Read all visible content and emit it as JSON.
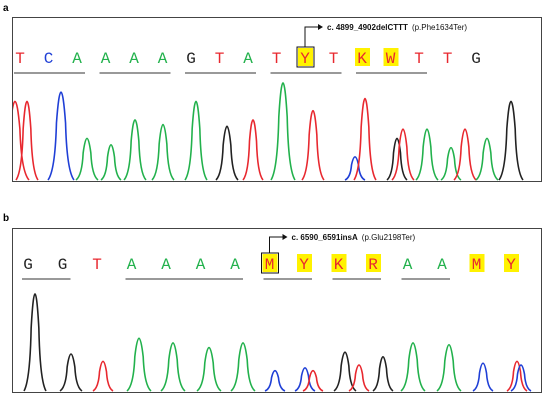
{
  "panels": [
    {
      "label": "a",
      "bases": [
        "T",
        "C",
        "A",
        "A",
        "A",
        "A",
        "G",
        "T",
        "A",
        "T",
        "Y",
        "T",
        "K",
        "W",
        "T",
        "T",
        "G"
      ],
      "highlighted": [
        10,
        12,
        13
      ],
      "boxed": [
        10
      ],
      "mutation_name": "c. 4899_4902delCTTT",
      "protein_change": "(p.Phe1634Ter)",
      "arrow_base": 10
    },
    {
      "label": "b",
      "bases": [
        "G",
        "G",
        "T",
        "A",
        "A",
        "A",
        "A",
        "M",
        "Y",
        "K",
        "R",
        "A",
        "A",
        "M",
        "Y"
      ],
      "highlighted": [
        7,
        8,
        9,
        10,
        13,
        14
      ],
      "boxed": [
        7
      ],
      "mutation_name": "c. 6590_6591insA",
      "protein_change": "(p.Glu2198Ter)",
      "arrow_base": 7
    }
  ],
  "colors": {
    "A": "#22b14c",
    "C": "#1f3fd6",
    "G": "#222222",
    "T": "#e8282f",
    "ambiguous": "#e8282f",
    "highlight_bg": "#fff200"
  }
}
